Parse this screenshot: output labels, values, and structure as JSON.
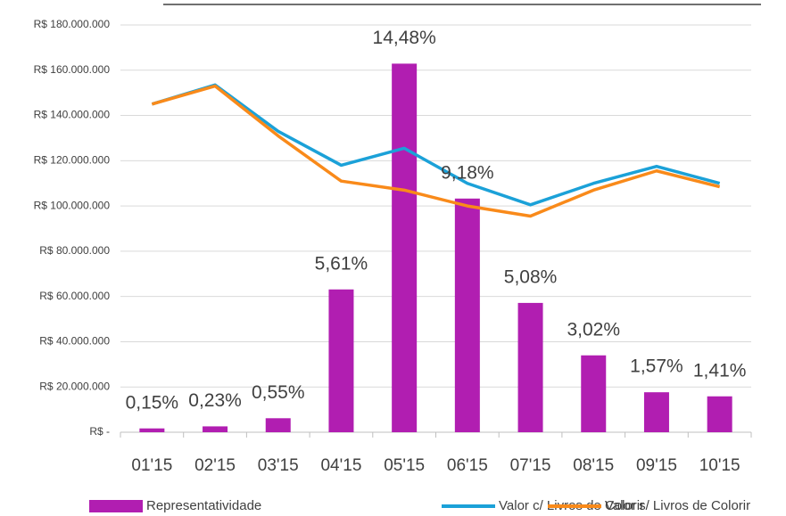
{
  "chart_data": {
    "type": "bar",
    "categories": [
      "01'15",
      "02'15",
      "03'15",
      "04'15",
      "05'15",
      "06'15",
      "07'15",
      "08'15",
      "09'15",
      "10'15"
    ],
    "series": [
      {
        "name": "Representatividade",
        "type": "bar",
        "axis": "y2",
        "color": "#b11eb1",
        "values": [
          0.15,
          0.23,
          0.55,
          5.61,
          14.48,
          9.18,
          5.08,
          3.02,
          1.57,
          1.41
        ],
        "value_labels": [
          "0,15%",
          "0,23%",
          "0,55%",
          "5,61%",
          "14,48%",
          "9,18%",
          "5,08%",
          "3,02%",
          "1,57%",
          "1,41%"
        ]
      },
      {
        "name": "Valor c/ Livros de Colorir",
        "type": "line",
        "color": "#1ba1d8",
        "values": [
          145000000,
          153500000,
          133000000,
          118000000,
          125500000,
          110000000,
          100500000,
          110000000,
          117500000,
          110000000
        ]
      },
      {
        "name": "Valor s/ Livros de Colorir",
        "type": "line",
        "color": "#f98a1a",
        "values": [
          145000000,
          153000000,
          131000000,
          111000000,
          107000000,
          100000000,
          95500000,
          107000000,
          115500000,
          108500000
        ]
      }
    ],
    "ylim": [
      0,
      180000000
    ],
    "yticks": [
      {
        "value": 0,
        "label": "R$ -"
      },
      {
        "value": 20000000,
        "label": "R$ 20.000.000"
      },
      {
        "value": 40000000,
        "label": "R$ 40.000.000"
      },
      {
        "value": 60000000,
        "label": "R$ 60.000.000"
      },
      {
        "value": 80000000,
        "label": "R$ 80.000.000"
      },
      {
        "value": 100000000,
        "label": "R$ 100.000.000"
      },
      {
        "value": 120000000,
        "label": "R$ 120.000.000"
      },
      {
        "value": 140000000,
        "label": "R$ 140.000.000"
      },
      {
        "value": 160000000,
        "label": "R$ 160.000.000"
      },
      {
        "value": 180000000,
        "label": "R$ 180.000.000"
      }
    ],
    "y2lim": [
      0,
      16
    ],
    "grid": true,
    "legend": "bottom"
  }
}
